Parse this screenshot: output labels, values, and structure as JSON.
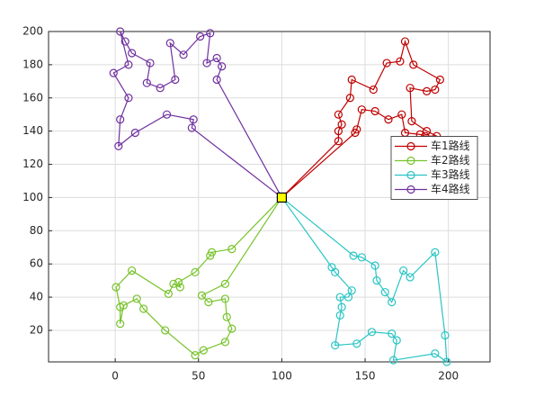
{
  "chart_data": {
    "type": "route",
    "xlim": [
      -40,
      225
    ],
    "ylim": [
      1,
      200
    ],
    "xticks": [
      0,
      50,
      100,
      150,
      200
    ],
    "yticks": [
      20,
      40,
      60,
      80,
      100,
      120,
      140,
      160,
      180,
      200
    ],
    "grid": true,
    "legend": "right",
    "depot": {
      "x": 100,
      "y": 100,
      "color": "#ffff00"
    },
    "series": [
      {
        "name": "车1路线",
        "color": "#c00000",
        "x": [
          100,
          144,
          145,
          148,
          156,
          164,
          172,
          174,
          183,
          186,
          193,
          187,
          178,
          177,
          187,
          192,
          195,
          179,
          174,
          171,
          163,
          155,
          142,
          141,
          134,
          136,
          134,
          134,
          100
        ],
        "y": [
          100,
          139,
          141,
          153,
          152,
          147,
          150,
          139,
          138,
          137,
          137,
          140,
          146,
          166,
          164,
          165,
          171,
          180,
          194,
          182,
          181,
          165,
          171,
          160,
          150,
          144,
          140,
          134,
          100
        ]
      },
      {
        "name": "车2路线",
        "color": "#77c32a",
        "x": [
          100,
          70,
          58,
          57,
          48,
          38,
          39,
          35,
          32,
          10,
          0.5,
          3,
          3,
          5,
          13,
          17,
          30,
          48,
          53,
          66,
          70,
          67,
          66,
          56,
          52,
          66,
          100
        ],
        "y": [
          100,
          69,
          67,
          65,
          55,
          49,
          46,
          48,
          42,
          56,
          46,
          34,
          24,
          35,
          39,
          33,
          20,
          5,
          8,
          13,
          21,
          28,
          39,
          37,
          41,
          48,
          100
        ]
      },
      {
        "name": "车3路线",
        "color": "#2ac4c4",
        "x": [
          100,
          143,
          148,
          156,
          157,
          162,
          166,
          173,
          177,
          192,
          198,
          199,
          192,
          167,
          169,
          166,
          154,
          145,
          132,
          135,
          136,
          135,
          140,
          142,
          132,
          130,
          100
        ],
        "y": [
          100,
          65,
          64,
          59,
          50,
          43,
          37,
          56,
          52,
          67,
          17,
          1,
          6,
          2,
          14,
          18,
          19,
          12,
          11,
          29,
          34,
          40,
          40,
          44,
          55,
          58,
          100
        ]
      },
      {
        "name": "车4路线",
        "color": "#7030a0",
        "x": [
          100,
          61,
          64,
          61,
          55,
          57,
          51,
          41,
          33,
          36,
          27,
          19,
          21,
          10,
          6,
          3,
          8,
          -1,
          8,
          3,
          2,
          12,
          31,
          47,
          46,
          100
        ],
        "y": [
          100,
          171,
          179,
          184,
          181,
          199,
          197,
          186,
          193,
          171,
          166,
          169,
          181,
          187,
          194,
          200,
          180,
          175,
          160,
          147,
          131,
          139,
          150,
          147,
          142,
          100
        ]
      }
    ]
  }
}
